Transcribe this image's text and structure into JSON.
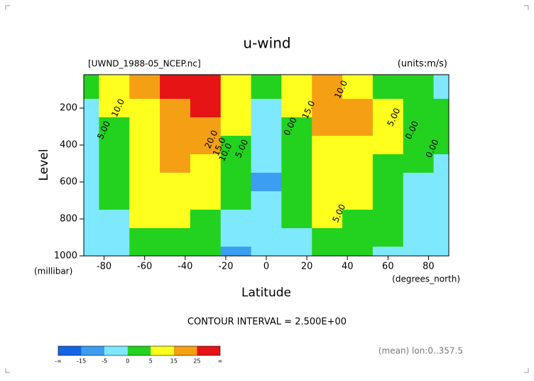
{
  "chart_data": {
    "type": "contour",
    "title": "u-wind",
    "dataset": "[UWND_1988-05_NCEP.nc]",
    "units": "(units:m/s)",
    "y_label": "Level",
    "y_unit": "(millibar)",
    "x_label": "Latitude",
    "x_unit": "(degrees_north)",
    "contour_interval": "CONTOUR INTERVAL = 2.500E+00",
    "footnote": "(mean) lon:0..357.5",
    "xlim": [
      -90,
      90
    ],
    "xticks": [
      -80,
      -60,
      -40,
      -20,
      0,
      20,
      40,
      60,
      80
    ],
    "ylim": [
      1000,
      19
    ],
    "yticks": [
      200,
      400,
      600,
      800,
      1000
    ],
    "x": [
      -90,
      -75,
      -60,
      -45,
      -30,
      -15,
      0,
      15,
      30,
      45,
      60,
      75,
      90
    ],
    "y": [
      100,
      200,
      300,
      400,
      500,
      600,
      700,
      800,
      900,
      1000
    ],
    "z": [
      [
        0,
        5,
        20,
        25,
        25,
        10,
        2,
        5,
        15,
        10,
        3,
        0,
        -2
      ],
      [
        -3,
        5,
        12,
        22,
        27,
        10,
        -2,
        5,
        22,
        18,
        7,
        2,
        2
      ],
      [
        -3,
        3,
        12,
        20,
        22,
        5,
        -3,
        3,
        17,
        15,
        6,
        1,
        2
      ],
      [
        -3,
        3,
        12,
        18,
        17,
        3,
        -2,
        3,
        13,
        12,
        5,
        1,
        0
      ],
      [
        -3,
        3,
        12,
        15,
        12,
        2,
        -4,
        2,
        10,
        10,
        4,
        0,
        -1
      ],
      [
        -3,
        2,
        12,
        14,
        8,
        1,
        -6,
        2,
        8,
        8,
        3,
        -1,
        -1
      ],
      [
        -5,
        1,
        10,
        12,
        5,
        0,
        -3,
        1,
        7,
        6,
        2,
        -1,
        -2
      ],
      [
        -5,
        -1,
        6,
        8,
        3,
        -1,
        -3,
        0,
        5,
        4,
        1,
        -2,
        -2
      ],
      [
        -5,
        -2,
        2,
        4,
        2,
        -3,
        -2,
        -1,
        3,
        2,
        0,
        -2,
        -2
      ],
      [
        -5,
        -3,
        0,
        2,
        1,
        -8,
        -2,
        -2,
        2,
        1,
        -1,
        -3,
        -3
      ]
    ],
    "contour_labels": [
      {
        "text": "10.0",
        "x": -73,
        "y": 200
      },
      {
        "text": "5.00",
        "x": -80,
        "y": 320
      },
      {
        "text": "20.0",
        "x": -27,
        "y": 370
      },
      {
        "text": "15.0",
        "x": -23,
        "y": 410
      },
      {
        "text": "10.0",
        "x": -20,
        "y": 440
      },
      {
        "text": "5.00",
        "x": -12,
        "y": 420
      },
      {
        "text": "0.00",
        "x": 12,
        "y": 300
      },
      {
        "text": "10.0",
        "x": 37,
        "y": 100
      },
      {
        "text": "15.0",
        "x": 21,
        "y": 210
      },
      {
        "text": "5.00",
        "x": 63,
        "y": 250
      },
      {
        "text": "0.00",
        "x": 72,
        "y": 320
      },
      {
        "text": "0.00",
        "x": 82,
        "y": 420
      },
      {
        "text": "5.00",
        "x": 36,
        "y": 770
      }
    ],
    "colorbar": {
      "ticks": [
        {
          "value": null,
          "label": "-∞"
        },
        -15,
        -5,
        0,
        5,
        15,
        25,
        {
          "value": null,
          "label": "∞"
        }
      ],
      "colors": [
        "#1464e6",
        "#3c9ef0",
        "#7ee8ff",
        "#22d21e",
        "#ffff1e",
        "#f5a014",
        "#e61414"
      ]
    }
  }
}
